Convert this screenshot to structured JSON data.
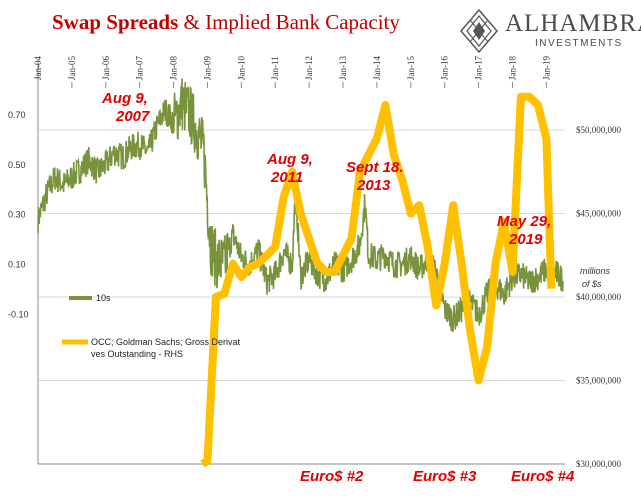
{
  "title": {
    "bold_part": "Swap Spreads",
    "rest_part": " & Implied Bank Capacity"
  },
  "logo": {
    "name": "ALHAMBRA",
    "subtitle": "INVESTMENTS",
    "icon": "diamond-lattice-icon"
  },
  "colors": {
    "swap_series": "#77933c",
    "occ_series": "#ffc000",
    "annotation": "#e00000",
    "title": "#c00000"
  },
  "chart_data": {
    "type": "line",
    "title": "Swap Spreads & Implied Bank Capacity",
    "x_ticks": [
      "Jan-04",
      "Jan-05",
      "Jan-06",
      "Jan-07",
      "Jan-08",
      "Jan-09",
      "Jan-10",
      "Jan-11",
      "Jan-12",
      "Jan-13",
      "Jan-14",
      "Jan-15",
      "Jan-16",
      "Jan-17",
      "Jan-18",
      "Jan-19"
    ],
    "x_range": [
      2004.0,
      2019.55
    ],
    "y_left": {
      "ticks": [
        "0.70",
        "0.50",
        "0.30",
        "0.10",
        "-0.10"
      ],
      "tick_values": [
        0.7,
        0.5,
        0.3,
        0.1,
        -0.1
      ],
      "range": [
        -0.7,
        0.8
      ]
    },
    "y_right": {
      "label": "millions of $s",
      "ticks": [
        "$50,000,000",
        "$45,000,000",
        "$40,000,000",
        "$35,000,000",
        "$30,000,000"
      ],
      "tick_values": [
        50000000,
        45000000,
        40000000,
        35000000,
        30000000
      ],
      "range": [
        30000000,
        52400000
      ]
    },
    "grid": "horizontal",
    "legend": "left",
    "series": [
      {
        "name": "10s",
        "axis": "left",
        "x": [
          2004.0,
          2004.25,
          2004.5,
          2004.75,
          2005.0,
          2005.25,
          2005.5,
          2005.75,
          2006.0,
          2006.25,
          2006.5,
          2006.75,
          2007.0,
          2007.25,
          2007.5,
          2007.6,
          2007.75,
          2008.0,
          2008.25,
          2008.5,
          2008.75,
          2008.9,
          2009.0,
          2009.1,
          2009.25,
          2009.5,
          2009.75,
          2010.0,
          2010.25,
          2010.5,
          2010.75,
          2011.0,
          2011.25,
          2011.5,
          2011.6,
          2011.75,
          2012.0,
          2012.25,
          2012.5,
          2012.75,
          2013.0,
          2013.25,
          2013.5,
          2013.65,
          2013.75,
          2014.0,
          2014.25,
          2014.5,
          2014.75,
          2015.0,
          2015.25,
          2015.5,
          2015.75,
          2016.0,
          2016.25,
          2016.5,
          2016.75,
          2017.0,
          2017.25,
          2017.5,
          2017.75,
          2018.0,
          2018.25,
          2018.5,
          2018.75,
          2019.0,
          2019.25,
          2019.5
        ],
        "values": [
          0.28,
          0.38,
          0.45,
          0.42,
          0.45,
          0.48,
          0.52,
          0.47,
          0.5,
          0.55,
          0.53,
          0.57,
          0.58,
          0.55,
          0.65,
          0.68,
          0.72,
          0.67,
          0.75,
          0.7,
          0.62,
          0.55,
          0.35,
          0.18,
          0.12,
          0.1,
          0.22,
          0.13,
          0.1,
          0.16,
          0.03,
          0.06,
          0.15,
          0.1,
          0.4,
          0.05,
          0.12,
          0.06,
          0.04,
          0.1,
          0.08,
          0.12,
          0.18,
          0.35,
          0.14,
          0.12,
          0.14,
          0.1,
          0.1,
          0.13,
          0.08,
          0.12,
          0.07,
          -0.08,
          -0.12,
          -0.08,
          -0.05,
          -0.1,
          -0.02,
          0.02,
          -0.02,
          0.05,
          0.06,
          0.03,
          0.05,
          0.08,
          0.07,
          0.04
        ]
      },
      {
        "name": "OCC; Goldman Sachs; Gross Derivatives Outstanding - RHS",
        "axis": "right",
        "x": [
          2008.85,
          2009.0,
          2009.25,
          2009.5,
          2009.75,
          2010.0,
          2010.25,
          2010.5,
          2010.75,
          2011.0,
          2011.25,
          2011.5,
          2011.75,
          2012.0,
          2012.25,
          2012.5,
          2012.75,
          2013.0,
          2013.25,
          2013.5,
          2013.75,
          2014.0,
          2014.25,
          2014.5,
          2014.75,
          2015.0,
          2015.25,
          2015.5,
          2015.75,
          2016.0,
          2016.25,
          2016.5,
          2016.75,
          2017.0,
          2017.25,
          2017.5,
          2017.75,
          2018.0,
          2018.25,
          2018.5,
          2018.75,
          2019.0,
          2019.15
        ],
        "values": [
          30000000,
          30200000,
          40000000,
          40200000,
          42000000,
          41200000,
          41800000,
          42000000,
          42500000,
          43000000,
          46000000,
          47500000,
          45000000,
          43500000,
          42000000,
          41500000,
          41500000,
          42500000,
          43500000,
          47500000,
          48500000,
          49500000,
          51500000,
          48500000,
          47000000,
          45000000,
          45500000,
          43000000,
          39500000,
          42000000,
          45500000,
          42000000,
          38000000,
          35000000,
          37000000,
          42000000,
          44500000,
          41500000,
          52000000,
          52000000,
          51500000,
          49500000,
          40500000
        ]
      }
    ],
    "annotations": [
      {
        "text": [
          "Aug 9,",
          "2007"
        ],
        "x": 2007.6,
        "y": 0.68
      },
      {
        "text": [
          "Aug 9,",
          "2011"
        ],
        "x": 2011.6,
        "y": 0.4
      },
      {
        "text": [
          "Sept 18.",
          "2013"
        ],
        "x": 2013.7,
        "y": 0.35
      },
      {
        "text": [
          "May 29,",
          "2019"
        ],
        "x": 2019.4,
        "y": 0.05
      },
      {
        "text": [
          "Euro$ #2"
        ],
        "x": 2012.3,
        "y_right": 30700000
      },
      {
        "text": [
          "Euro$ #3"
        ],
        "x": 2016.0,
        "y_right": 30700000
      },
      {
        "text": [
          "Euro$ #4"
        ],
        "x": 2018.5,
        "y_right": 30700000
      }
    ]
  }
}
